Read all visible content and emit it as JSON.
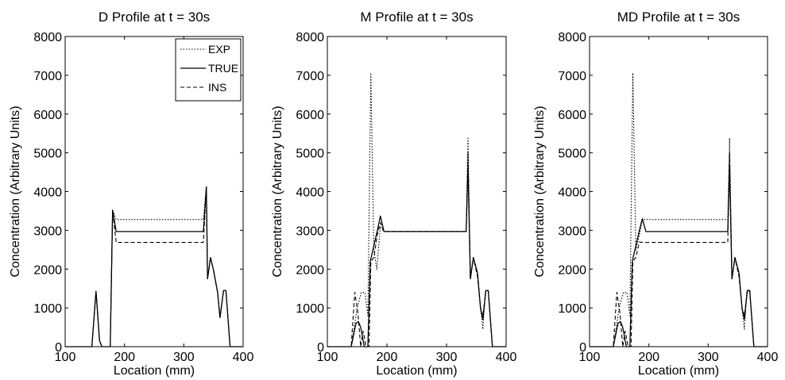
{
  "chart_data": [
    {
      "type": "line",
      "title": "D Profile at t = 30s",
      "xlabel": "Location (mm)",
      "ylabel": "Concentration (Arbitrary Units)",
      "xlim": [
        100,
        400
      ],
      "ylim": [
        0,
        8000
      ],
      "xticks": [
        "100",
        "200",
        "300",
        "400"
      ],
      "yticks": [
        "0",
        "1000",
        "2000",
        "3000",
        "4000",
        "5000",
        "6000",
        "7000",
        "8000"
      ],
      "legend": {
        "placement": "top-right",
        "entries": [
          "EXP",
          "TRUE",
          "INS"
        ]
      },
      "series": [
        {
          "name": "EXP",
          "style": "dotted",
          "points": [
            [
              100,
              0
            ],
            [
              145,
              0
            ],
            [
              152,
              1430
            ],
            [
              158,
              150
            ],
            [
              162,
              0
            ],
            [
              176,
              0
            ],
            [
              180,
              3520
            ],
            [
              186,
              3280
            ],
            [
              333,
              3280
            ],
            [
              338,
              4120
            ],
            [
              340,
              1750
            ],
            [
              345,
              2300
            ],
            [
              350,
              1980
            ],
            [
              357,
              1400
            ],
            [
              361,
              750
            ],
            [
              367,
              1450
            ],
            [
              371,
              1450
            ],
            [
              378,
              0
            ],
            [
              400,
              0
            ]
          ]
        },
        {
          "name": "TRUE",
          "style": "solid",
          "points": [
            [
              100,
              0
            ],
            [
              145,
              0
            ],
            [
              152,
              1430
            ],
            [
              158,
              150
            ],
            [
              162,
              0
            ],
            [
              176,
              0
            ],
            [
              180,
              3520
            ],
            [
              186,
              2970
            ],
            [
              333,
              2970
            ],
            [
              338,
              4120
            ],
            [
              340,
              1750
            ],
            [
              345,
              2300
            ],
            [
              350,
              1980
            ],
            [
              357,
              1400
            ],
            [
              361,
              750
            ],
            [
              367,
              1450
            ],
            [
              371,
              1450
            ],
            [
              378,
              0
            ],
            [
              400,
              0
            ]
          ]
        },
        {
          "name": "INS",
          "style": "dashed",
          "points": [
            [
              100,
              0
            ],
            [
              145,
              0
            ],
            [
              152,
              1430
            ],
            [
              158,
              150
            ],
            [
              162,
              0
            ],
            [
              176,
              0
            ],
            [
              180,
              3520
            ],
            [
              186,
              2690
            ],
            [
              333,
              2690
            ],
            [
              338,
              4120
            ],
            [
              340,
              1750
            ],
            [
              345,
              2300
            ],
            [
              350,
              1980
            ],
            [
              357,
              1400
            ],
            [
              361,
              750
            ],
            [
              367,
              1450
            ],
            [
              371,
              1450
            ],
            [
              378,
              0
            ],
            [
              400,
              0
            ]
          ]
        }
      ]
    },
    {
      "type": "line",
      "title": "M Profile at t = 30s",
      "xlabel": "Location (mm)",
      "ylabel": "Concentration (Arbitrary Units)",
      "xlim": [
        100,
        400
      ],
      "ylim": [
        0,
        8000
      ],
      "xticks": [
        "100",
        "200",
        "300",
        "400"
      ],
      "yticks": [
        "0",
        "1000",
        "2000",
        "3000",
        "4000",
        "5000",
        "6000",
        "7000",
        "8000"
      ],
      "series": [
        {
          "name": "EXP",
          "style": "dotted",
          "points": [
            [
              100,
              0
            ],
            [
              140,
              0
            ],
            [
              150,
              1000
            ],
            [
              157,
              1400
            ],
            [
              163,
              1400
            ],
            [
              168,
              800
            ],
            [
              173,
              7060
            ],
            [
              178,
              2500
            ],
            [
              183,
              2000
            ],
            [
              189,
              3100
            ],
            [
              195,
              2970
            ],
            [
              333,
              2970
            ],
            [
              336,
              5380
            ],
            [
              340,
              1750
            ],
            [
              345,
              2300
            ],
            [
              352,
              1900
            ],
            [
              357,
              1000
            ],
            [
              361,
              450
            ],
            [
              365,
              1400
            ],
            [
              370,
              1450
            ],
            [
              377,
              0
            ],
            [
              400,
              0
            ]
          ]
        },
        {
          "name": "TRUE",
          "style": "solid",
          "points": [
            [
              100,
              0
            ],
            [
              140,
              0
            ],
            [
              148,
              600
            ],
            [
              152,
              650
            ],
            [
              156,
              500
            ],
            [
              162,
              0
            ],
            [
              168,
              0
            ],
            [
              172,
              2200
            ],
            [
              178,
              2600
            ],
            [
              184,
              3000
            ],
            [
              189,
              3370
            ],
            [
              195,
              2970
            ],
            [
              333,
              2970
            ],
            [
              336,
              4700
            ],
            [
              340,
              1750
            ],
            [
              345,
              2300
            ],
            [
              352,
              1900
            ],
            [
              357,
              1000
            ],
            [
              361,
              700
            ],
            [
              366,
              1450
            ],
            [
              370,
              1450
            ],
            [
              377,
              0
            ],
            [
              400,
              0
            ]
          ]
        },
        {
          "name": "INS",
          "style": "dashed",
          "points": [
            [
              100,
              0
            ],
            [
              140,
              0
            ],
            [
              146,
              1400
            ],
            [
              151,
              900
            ],
            [
              156,
              0
            ],
            [
              160,
              400
            ],
            [
              165,
              0
            ],
            [
              170,
              0
            ],
            [
              173,
              2200
            ],
            [
              178,
              2300
            ],
            [
              184,
              2900
            ],
            [
              189,
              3200
            ],
            [
              195,
              2970
            ],
            [
              333,
              2970
            ],
            [
              336,
              5000
            ],
            [
              340,
              1750
            ],
            [
              345,
              2300
            ],
            [
              352,
              1800
            ],
            [
              357,
              1000
            ],
            [
              361,
              800
            ],
            [
              366,
              1450
            ],
            [
              370,
              1450
            ],
            [
              377,
              0
            ],
            [
              400,
              0
            ]
          ]
        }
      ]
    },
    {
      "type": "line",
      "title": "MD Profile at t = 30s",
      "xlabel": "Location (mm)",
      "ylabel": "Concentration (Arbitrary Units)",
      "xlim": [
        100,
        400
      ],
      "ylim": [
        0,
        8000
      ],
      "xticks": [
        "100",
        "200",
        "300",
        "400"
      ],
      "yticks": [
        "0",
        "1000",
        "2000",
        "3000",
        "4000",
        "5000",
        "6000",
        "7000",
        "8000"
      ],
      "series": [
        {
          "name": "EXP",
          "style": "dotted",
          "points": [
            [
              100,
              0
            ],
            [
              140,
              0
            ],
            [
              150,
              1000
            ],
            [
              157,
              1400
            ],
            [
              163,
              1400
            ],
            [
              168,
              800
            ],
            [
              173,
              7060
            ],
            [
              178,
              2500
            ],
            [
              183,
              2800
            ],
            [
              189,
              3280
            ],
            [
              333,
              3280
            ],
            [
              336,
              5380
            ],
            [
              340,
              1750
            ],
            [
              345,
              2300
            ],
            [
              352,
              1900
            ],
            [
              357,
              1000
            ],
            [
              361,
              450
            ],
            [
              365,
              1400
            ],
            [
              370,
              1450
            ],
            [
              377,
              0
            ],
            [
              400,
              0
            ]
          ]
        },
        {
          "name": "TRUE",
          "style": "solid",
          "points": [
            [
              100,
              0
            ],
            [
              140,
              0
            ],
            [
              148,
              600
            ],
            [
              152,
              650
            ],
            [
              156,
              500
            ],
            [
              162,
              0
            ],
            [
              168,
              0
            ],
            [
              172,
              2200
            ],
            [
              178,
              2600
            ],
            [
              184,
              3000
            ],
            [
              189,
              3300
            ],
            [
              195,
              2970
            ],
            [
              333,
              2970
            ],
            [
              336,
              4700
            ],
            [
              340,
              1750
            ],
            [
              345,
              2300
            ],
            [
              352,
              1900
            ],
            [
              357,
              1000
            ],
            [
              361,
              700
            ],
            [
              366,
              1450
            ],
            [
              370,
              1450
            ],
            [
              377,
              0
            ],
            [
              400,
              0
            ]
          ]
        },
        {
          "name": "INS",
          "style": "dashed",
          "points": [
            [
              100,
              0
            ],
            [
              140,
              0
            ],
            [
              146,
              1400
            ],
            [
              151,
              900
            ],
            [
              156,
              0
            ],
            [
              160,
              400
            ],
            [
              165,
              0
            ],
            [
              170,
              0
            ],
            [
              173,
              2200
            ],
            [
              178,
              2300
            ],
            [
              184,
              2700
            ],
            [
              189,
              2690
            ],
            [
              333,
              2690
            ],
            [
              336,
              5000
            ],
            [
              340,
              1750
            ],
            [
              345,
              2300
            ],
            [
              352,
              1800
            ],
            [
              357,
              1000
            ],
            [
              361,
              800
            ],
            [
              366,
              1450
            ],
            [
              370,
              1450
            ],
            [
              377,
              0
            ],
            [
              400,
              0
            ]
          ]
        }
      ]
    }
  ]
}
